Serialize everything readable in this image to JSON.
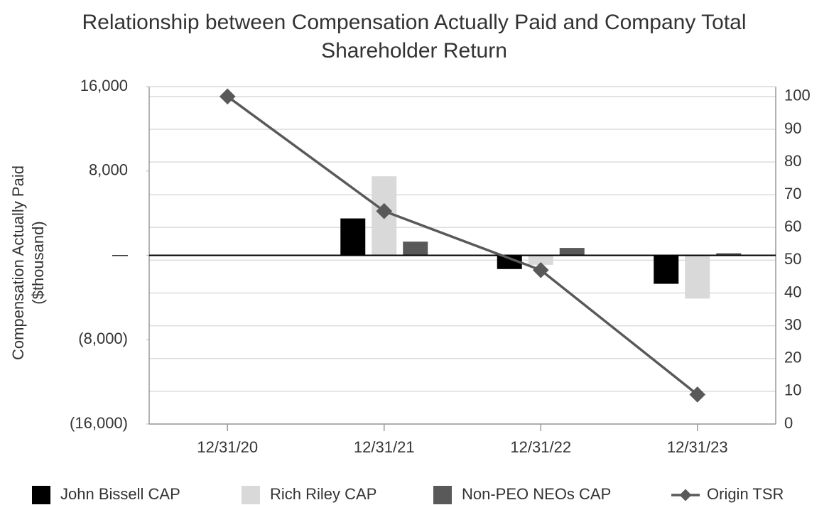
{
  "chart_data": {
    "type": "bar",
    "title": "Relationship between Compensation Actually Paid and Company Total Shareholder Return",
    "y_label": "Compensation Actually Paid ($thousand)",
    "categories": [
      "12/31/20",
      "12/31/21",
      "12/31/22",
      "12/31/23"
    ],
    "series": [
      {
        "name": "John Bissell CAP",
        "color": "#000000",
        "values": [
          null,
          3500,
          -1300,
          -2700
        ]
      },
      {
        "name": "Rich Riley CAP",
        "color": "#d9d9d9",
        "values": [
          null,
          7500,
          -900,
          -4100
        ]
      },
      {
        "name": "Non-PEO NEOs CAP",
        "color": "#595959",
        "values": [
          null,
          1300,
          700,
          200
        ]
      },
      {
        "name": "Origin TSR",
        "color": "#595959",
        "type": "line",
        "axis": "y2",
        "values": [
          100,
          65,
          47,
          9
        ]
      }
    ],
    "ylim": [
      -16000,
      16000
    ],
    "yticks": [
      {
        "value": 16000,
        "label": "16,000"
      },
      {
        "value": 8000,
        "label": "8,000"
      },
      {
        "value": 0,
        "label": "—"
      },
      {
        "value": -8000,
        "label": "(8,000)"
      },
      {
        "value": -16000,
        "label": "(16,000)"
      }
    ],
    "y2lim": [
      0,
      103
    ],
    "y2ticks": [
      0,
      10,
      20,
      30,
      40,
      50,
      60,
      70,
      80,
      90,
      100
    ],
    "grid": true,
    "legend": "bottom"
  }
}
